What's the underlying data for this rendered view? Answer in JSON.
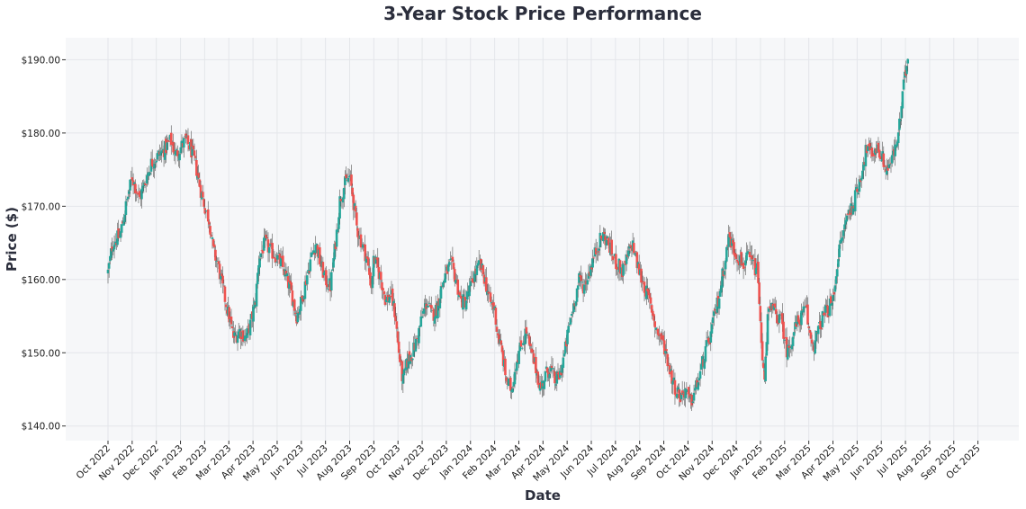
{
  "chart_data": {
    "type": "candlestick",
    "title": "3-Year Stock Price Performance",
    "xlabel": "Date",
    "ylabel": "Price ($)",
    "ylim": [
      138.0,
      193.0
    ],
    "y_ticks": [
      140,
      150,
      160,
      170,
      180,
      190
    ],
    "y_tick_labels": [
      "$140.00",
      "$150.00",
      "$160.00",
      "$170.00",
      "$180.00",
      "$190.00"
    ],
    "x_tick_labels": [
      "Oct 2022",
      "Nov 2022",
      "Dec 2022",
      "Jan 2023",
      "Feb 2023",
      "Mar 2023",
      "Apr 2023",
      "May 2023",
      "Jun 2023",
      "Jul 2023",
      "Aug 2023",
      "Sep 2023",
      "Oct 2023",
      "Nov 2023",
      "Dec 2023",
      "Jan 2024",
      "Feb 2024",
      "Mar 2024",
      "Apr 2024",
      "May 2024",
      "Jun 2024",
      "Jul 2024",
      "Aug 2024",
      "Sep 2024",
      "Oct 2024",
      "Nov 2024",
      "Dec 2024",
      "Jan 2025",
      "Feb 2025",
      "Mar 2025",
      "Apr 2025",
      "May 2025",
      "Jun 2025",
      "Jul 2025",
      "Aug 2025",
      "Sep 2025",
      "Oct 2025"
    ],
    "grid": true,
    "colors": {
      "up": "#26a69a",
      "down": "#ef5350",
      "wick": "#555555",
      "background": "#f6f7f9",
      "grid": "#e4e6ea"
    },
    "close_path": [
      [
        0,
        161
      ],
      [
        0.2,
        165
      ],
      [
        0.5,
        166
      ],
      [
        0.8,
        171
      ],
      [
        1.0,
        174
      ],
      [
        1.3,
        171
      ],
      [
        1.5,
        173
      ],
      [
        1.8,
        176
      ],
      [
        2.1,
        177
      ],
      [
        2.4,
        178
      ],
      [
        2.6,
        179
      ],
      [
        2.8,
        177
      ],
      [
        3.0,
        178
      ],
      [
        3.2,
        179
      ],
      [
        3.4,
        178
      ],
      [
        3.6,
        176
      ],
      [
        3.85,
        172
      ],
      [
        4.0,
        170
      ],
      [
        4.2,
        168
      ],
      [
        4.35,
        164
      ],
      [
        4.55,
        162
      ],
      [
        4.8,
        158
      ],
      [
        5.0,
        155
      ],
      [
        5.2,
        152
      ],
      [
        5.45,
        153
      ],
      [
        5.7,
        152
      ],
      [
        5.9,
        154
      ],
      [
        6.1,
        157
      ],
      [
        6.25,
        163
      ],
      [
        6.5,
        165
      ],
      [
        6.7,
        164
      ],
      [
        7.0,
        163
      ],
      [
        7.2,
        162
      ],
      [
        7.4,
        160
      ],
      [
        7.6,
        158
      ],
      [
        7.8,
        155
      ],
      [
        8.0,
        157
      ],
      [
        8.2,
        160
      ],
      [
        8.4,
        163
      ],
      [
        8.6,
        165
      ],
      [
        8.8,
        162
      ],
      [
        9.0,
        160
      ],
      [
        9.2,
        159
      ],
      [
        9.45,
        166
      ],
      [
        9.6,
        171
      ],
      [
        9.8,
        173
      ],
      [
        10.0,
        174
      ],
      [
        10.1,
        172
      ],
      [
        10.3,
        167
      ],
      [
        10.5,
        165
      ],
      [
        10.7,
        163
      ],
      [
        10.9,
        159
      ],
      [
        11.0,
        163
      ],
      [
        11.1,
        162
      ],
      [
        11.3,
        160
      ],
      [
        11.5,
        157
      ],
      [
        11.7,
        158
      ],
      [
        11.9,
        155
      ],
      [
        12.0,
        151
      ],
      [
        12.2,
        146
      ],
      [
        12.4,
        149
      ],
      [
        12.6,
        150
      ],
      [
        12.8,
        152
      ],
      [
        13.0,
        155
      ],
      [
        13.2,
        157
      ],
      [
        13.4,
        155
      ],
      [
        13.6,
        156
      ],
      [
        13.8,
        159
      ],
      [
        14.0,
        161
      ],
      [
        14.2,
        162
      ],
      [
        14.4,
        160
      ],
      [
        14.6,
        157
      ],
      [
        14.8,
        157
      ],
      [
        15.0,
        159
      ],
      [
        15.2,
        161
      ],
      [
        15.4,
        162
      ],
      [
        15.6,
        160
      ],
      [
        15.8,
        157
      ],
      [
        16.0,
        156
      ],
      [
        16.1,
        153
      ],
      [
        16.3,
        150
      ],
      [
        16.5,
        146
      ],
      [
        16.7,
        145
      ],
      [
        16.9,
        149
      ],
      [
        17.1,
        151
      ],
      [
        17.3,
        153
      ],
      [
        17.5,
        150
      ],
      [
        17.7,
        148
      ],
      [
        17.9,
        145
      ],
      [
        18.1,
        147
      ],
      [
        18.3,
        148
      ],
      [
        18.5,
        146
      ],
      [
        18.7,
        147
      ],
      [
        18.9,
        150
      ],
      [
        19.1,
        154
      ],
      [
        19.3,
        157
      ],
      [
        19.5,
        160
      ],
      [
        19.7,
        159
      ],
      [
        19.9,
        161
      ],
      [
        20.1,
        163
      ],
      [
        20.3,
        165
      ],
      [
        20.5,
        166
      ],
      [
        20.7,
        165
      ],
      [
        20.9,
        163
      ],
      [
        21.1,
        162
      ],
      [
        21.3,
        161
      ],
      [
        21.5,
        163
      ],
      [
        21.7,
        165
      ],
      [
        21.9,
        162
      ],
      [
        22.1,
        160
      ],
      [
        22.3,
        158
      ],
      [
        22.5,
        156
      ],
      [
        22.7,
        153
      ],
      [
        22.9,
        152
      ],
      [
        23.1,
        150
      ],
      [
        23.3,
        147
      ],
      [
        23.5,
        145
      ],
      [
        23.7,
        144
      ],
      [
        23.9,
        145
      ],
      [
        24.1,
        143
      ],
      [
        24.3,
        145
      ],
      [
        24.5,
        147
      ],
      [
        24.7,
        150
      ],
      [
        24.9,
        152
      ],
      [
        25.1,
        155
      ],
      [
        25.3,
        158
      ],
      [
        25.5,
        162
      ],
      [
        25.7,
        166
      ],
      [
        25.9,
        164
      ],
      [
        26.1,
        163
      ],
      [
        26.3,
        162
      ],
      [
        26.5,
        163
      ],
      [
        26.7,
        162
      ],
      [
        26.9,
        161
      ],
      [
        27.0,
        153
      ],
      [
        27.15,
        146
      ],
      [
        27.3,
        155
      ],
      [
        27.5,
        156
      ],
      [
        27.7,
        155
      ],
      [
        27.9,
        154
      ],
      [
        28.1,
        150
      ],
      [
        28.3,
        152
      ],
      [
        28.5,
        154
      ],
      [
        28.7,
        155
      ],
      [
        28.9,
        156
      ],
      [
        29.0,
        153
      ],
      [
        29.2,
        151
      ],
      [
        29.4,
        153
      ],
      [
        29.6,
        155
      ],
      [
        29.8,
        156
      ],
      [
        30.0,
        157
      ],
      [
        30.2,
        163
      ],
      [
        30.4,
        166
      ],
      [
        30.6,
        169
      ],
      [
        30.8,
        170
      ],
      [
        31.0,
        172
      ],
      [
        31.2,
        175
      ],
      [
        31.4,
        178
      ],
      [
        31.6,
        177
      ],
      [
        31.8,
        178
      ],
      [
        32.0,
        177
      ],
      [
        32.2,
        175
      ],
      [
        32.4,
        176
      ],
      [
        32.6,
        178
      ],
      [
        32.8,
        182
      ],
      [
        32.9,
        186
      ],
      [
        33.0,
        188
      ],
      [
        33.1,
        191
      ]
    ]
  }
}
